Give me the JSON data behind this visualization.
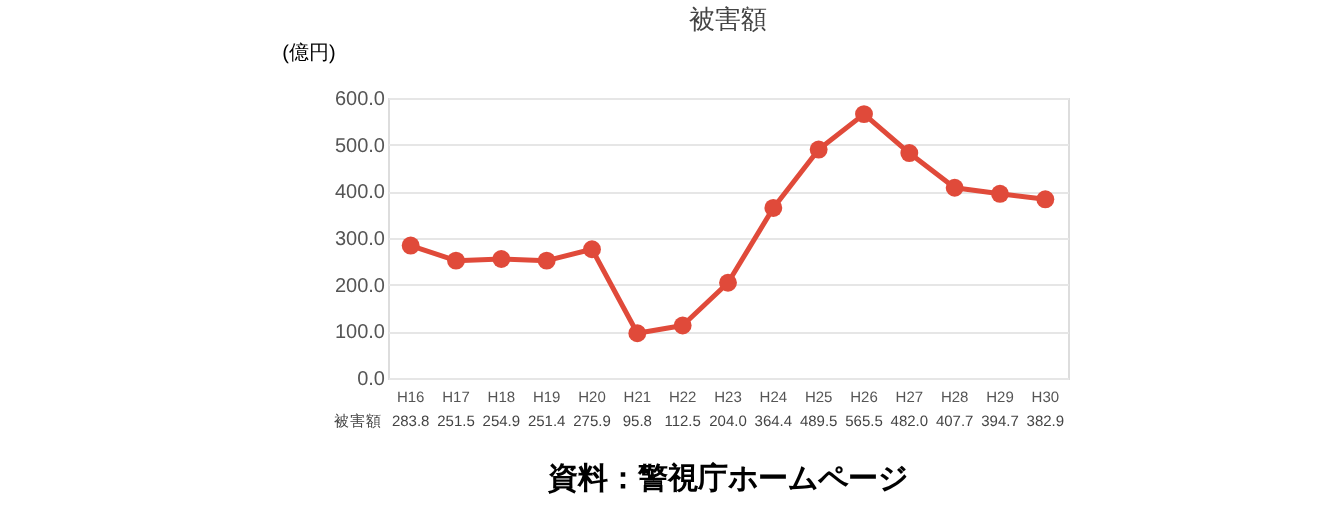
{
  "chart_data": {
    "type": "line",
    "title": "被害額",
    "ylabel": "(億円)",
    "categories": [
      "H16",
      "H17",
      "H18",
      "H19",
      "H20",
      "H21",
      "H22",
      "H23",
      "H24",
      "H25",
      "H26",
      "H27",
      "H28",
      "H29",
      "H30"
    ],
    "series": [
      {
        "name": "被害額",
        "color": "#e04a3a",
        "values": [
          283.8,
          251.5,
          254.9,
          251.4,
          275.9,
          95.8,
          112.5,
          204.0,
          364.4,
          489.5,
          565.5,
          482.0,
          407.7,
          394.7,
          382.9
        ],
        "value_labels": [
          "283.8",
          "251.5",
          "254.9",
          "251.4",
          "275.9",
          "95.8",
          "112.5",
          "204.0",
          "364.4",
          "489.5",
          "565.5",
          "482.0",
          "407.7",
          "394.7",
          "382.9"
        ]
      }
    ],
    "ylim": [
      0,
      600
    ],
    "yticks": [
      {
        "value": 0,
        "label": "0.0"
      },
      {
        "value": 100,
        "label": "100.0"
      },
      {
        "value": 200,
        "label": "200.0"
      },
      {
        "value": 300,
        "label": "300.0"
      },
      {
        "value": 400,
        "label": "400.0"
      },
      {
        "value": 500,
        "label": "500.0"
      },
      {
        "value": 600,
        "label": "600.0"
      }
    ],
    "grid": "y",
    "marker": "circle",
    "legend": false,
    "annotations": [
      "資料：警視庁ホームページ"
    ]
  }
}
